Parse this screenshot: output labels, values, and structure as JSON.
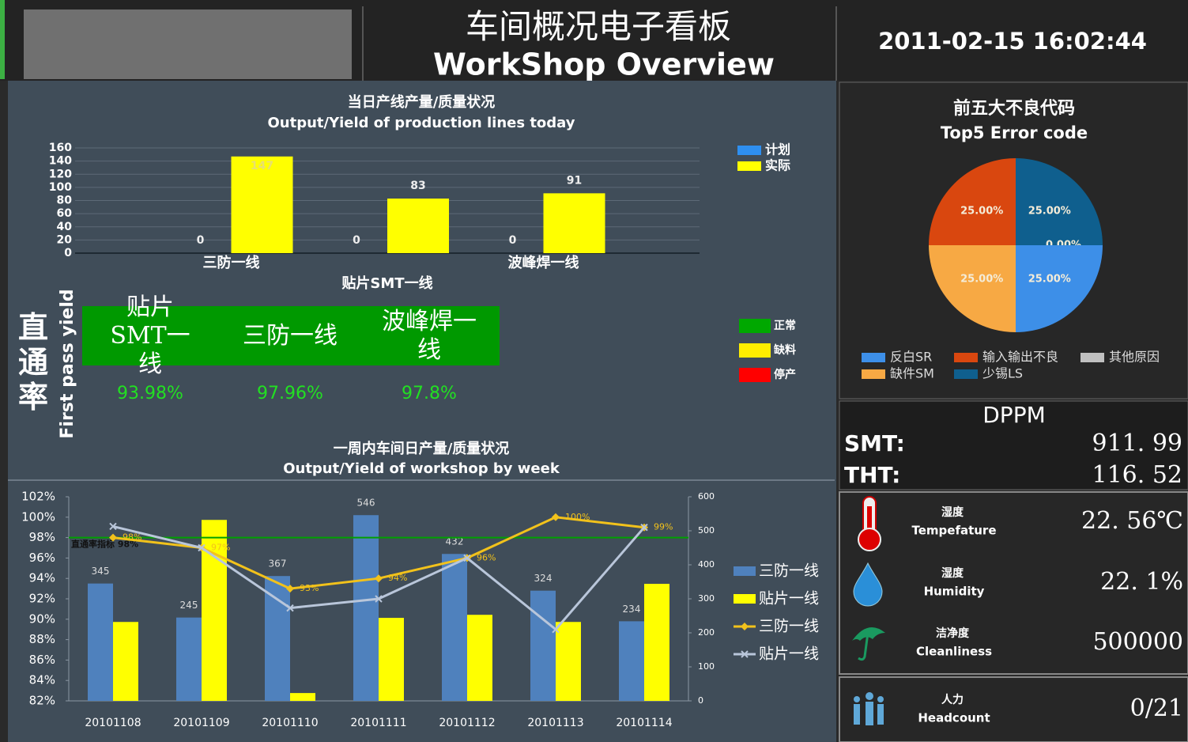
{
  "header": {
    "title": "车间概况电子看板",
    "subtitle": "WorkShop Overview",
    "datetime": "2011-02-15 16:02:44"
  },
  "chart_data": [
    {
      "type": "bar",
      "title": "当日产线产量/质量状况",
      "subtitle": "Output/Yield of production lines today",
      "categories": [
        "三防一线",
        "贴片SMT一线",
        "波峰焊一线"
      ],
      "series": [
        {
          "name": "计划",
          "color": "#2e8ff0",
          "values": [
            0,
            0,
            0
          ]
        },
        {
          "name": "实际",
          "color": "#ffff00",
          "values": [
            147,
            83,
            91
          ]
        }
      ],
      "ylim": [
        0,
        160
      ],
      "yticks": [
        0,
        20,
        40,
        60,
        80,
        100,
        120,
        140,
        160
      ],
      "grid": true
    },
    {
      "type": "combo",
      "title": "一周内车间日产量/质量状况",
      "subtitle": "Output/Yield of workshop by week",
      "categories": [
        "20101108",
        "20101109",
        "20101110",
        "20101111",
        "20101112",
        "20101113",
        "20101114"
      ],
      "series": [
        {
          "name": "三防一线",
          "type": "bar",
          "axis": "y2",
          "color": "#4f81bd",
          "values": [
            345,
            245,
            367,
            546,
            432,
            324,
            234
          ],
          "show_labels": true
        },
        {
          "name": "贴片一线",
          "type": "bar",
          "axis": "y2",
          "color": "#ffff00",
          "values": [
            232,
            532,
            23,
            244,
            253,
            232,
            344
          ]
        },
        {
          "name": "三防一线",
          "type": "line",
          "color": "#f2c21b",
          "marker": "diamond",
          "values": [
            98,
            97,
            93,
            94,
            96,
            100,
            99
          ],
          "value_labels": [
            "98%",
            "97%",
            "93%",
            "94%",
            "96%",
            "100%",
            "99%"
          ]
        },
        {
          "name": "贴片一线",
          "type": "line",
          "color": "#b9c6da",
          "marker": "x",
          "values": [
            99.1,
            97,
            91.1,
            92,
            96,
            89,
            99
          ]
        }
      ],
      "ylim": [
        82,
        102
      ],
      "yticks": [
        {
          "value": 82,
          "label": "82%"
        },
        {
          "value": 84,
          "label": "84%"
        },
        {
          "value": 86,
          "label": "86%"
        },
        {
          "value": 88,
          "label": "88%"
        },
        {
          "value": 90,
          "label": "90%"
        },
        {
          "value": 92,
          "label": "92%"
        },
        {
          "value": 94,
          "label": "94%"
        },
        {
          "value": 96,
          "label": "96%"
        },
        {
          "value": 98,
          "label": "98%"
        },
        {
          "value": 100,
          "label": "100%"
        },
        {
          "value": 102,
          "label": "102%"
        }
      ],
      "y2lim": [
        0,
        600
      ],
      "y2ticks": [
        0,
        100,
        200,
        300,
        400,
        500,
        600
      ],
      "target": {
        "label": "直通率指标 98%",
        "value": 98,
        "color": "#00a000"
      }
    },
    {
      "type": "pie",
      "title": "前五大不良代码",
      "subtitle": "Top5 Error code",
      "categories": [
        "少锡LS",
        "其他原因",
        "反白SR",
        "缺件SM",
        "输入输出不良"
      ],
      "values": [
        25,
        0,
        25,
        25,
        25
      ],
      "value_labels": [
        "25.00%",
        "0.00%",
        "25.00%",
        "25.00%",
        "25.00%"
      ],
      "colors": [
        "#0f5f8e",
        "#c0c0c0",
        "#3d8fe8",
        "#f7a944",
        "#d9470f"
      ]
    }
  ],
  "yield": {
    "title": "直通率",
    "subtitle": "First pass yield",
    "items": [
      {
        "name": "贴片SMT一线",
        "rate": "93.98%"
      },
      {
        "name": "三防一线",
        "rate": "97.96%"
      },
      {
        "name": "波峰焊一线",
        "rate": "97.8%"
      }
    ]
  },
  "status_legend": [
    {
      "name": "正常",
      "color": "#00a800"
    },
    {
      "name": "缺料",
      "color": "#ffee00"
    },
    {
      "name": "停产",
      "color": "#ff0000"
    }
  ],
  "dppm": {
    "title": "DPPM",
    "rows": [
      {
        "label": "SMT:",
        "value": "911. 99"
      },
      {
        "label": "THT:",
        "value": "116. 52"
      }
    ]
  },
  "environment": [
    {
      "label_cn": "湿度",
      "label_en": "Tempefature",
      "value": "22. 56℃"
    },
    {
      "label_cn": "湿度",
      "label_en": "Humidity",
      "value": "22. 1%"
    },
    {
      "label_cn": "洁净度",
      "label_en": "Cleanliness",
      "value": "500000"
    },
    {
      "label_cn": "人力",
      "label_en": "Headcount",
      "value": "0/21"
    }
  ]
}
